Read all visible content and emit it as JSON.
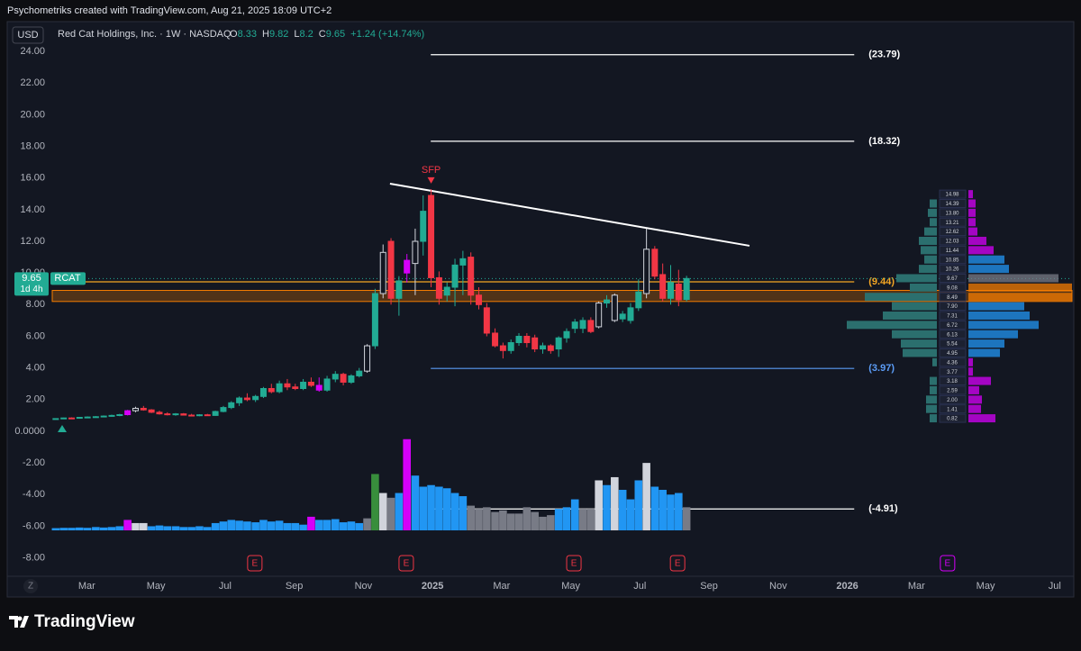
{
  "header": {
    "credit": "Psychometriks created with TradingView.com, Aug 21, 2025 18:09 UTC+2"
  },
  "chart_data": {
    "type": "candlestick",
    "currency": "USD",
    "title": "Red Cat Holdings, Inc. · 1W · NASDAQ",
    "ohlc_letters": [
      "O",
      "H",
      "L",
      "C"
    ],
    "change_label": "+1.24 (+14.74%)",
    "symbol": "RCAT",
    "countdown": "1d 4h",
    "x": [
      1.1,
      1.33,
      1.56,
      1.79,
      2.02,
      2.26,
      2.49,
      2.72,
      2.95,
      3.18,
      3.41,
      3.64,
      3.87,
      4.1,
      4.33,
      4.57,
      4.8,
      5.03,
      5.26,
      5.49,
      5.72,
      5.95,
      6.18,
      6.41,
      6.64,
      6.88,
      7.11,
      7.34,
      7.57,
      7.8,
      8.03,
      8.26,
      8.49,
      8.72,
      8.95,
      9.19,
      9.42,
      9.65,
      9.88,
      10.11,
      10.34,
      10.57,
      10.8,
      11.03,
      11.26,
      11.5,
      11.73,
      11.96,
      12.19,
      12.42,
      12.65,
      12.88,
      13.11,
      13.34,
      13.57,
      13.81,
      14.04,
      14.27,
      14.5,
      14.73,
      14.96,
      15.19,
      15.42,
      15.65,
      15.88,
      16.12,
      16.35,
      16.58,
      16.81,
      17.04,
      17.27,
      17.5,
      17.73,
      17.96,
      18.19,
      18.43,
      18.66,
      18.89,
      19.12,
      19.35
    ],
    "open": [
      0.78,
      0.8,
      0.84,
      0.82,
      0.88,
      0.9,
      0.92,
      0.96,
      1.0,
      1.05,
      1.3,
      1.45,
      1.35,
      1.2,
      1.1,
      1.05,
      1.1,
      1.02,
      1.0,
      1.04,
      1.0,
      1.25,
      1.5,
      1.8,
      2.1,
      2.0,
      2.2,
      2.7,
      2.5,
      3.0,
      2.8,
      2.7,
      3.1,
      2.9,
      2.6,
      3.3,
      3.6,
      3.1,
      3.5,
      3.8,
      5.4,
      8.7,
      12.0,
      8.4,
      10.0,
      10.6,
      12.0,
      14.9,
      9.7,
      8.6,
      9.1,
      10.5,
      11.0,
      8.6,
      7.8,
      6.2,
      5.4,
      5.1,
      5.6,
      6.0,
      5.9,
      5.2,
      5.4,
      5.2,
      5.9,
      6.5,
      6.5,
      7.0,
      6.6,
      8.1,
      8.6,
      7.1,
      7.0,
      7.8,
      8.7,
      11.5,
      9.9,
      8.4,
      9.3,
      8.33
    ],
    "high": [
      0.82,
      0.86,
      0.88,
      0.9,
      0.94,
      0.96,
      1.0,
      1.05,
      1.1,
      1.35,
      1.55,
      1.6,
      1.4,
      1.3,
      1.2,
      1.15,
      1.15,
      1.1,
      1.08,
      1.1,
      1.3,
      1.6,
      1.9,
      2.2,
      2.4,
      2.3,
      2.8,
      3.0,
      3.2,
      3.3,
      3.0,
      3.3,
      3.4,
      3.4,
      3.5,
      3.8,
      3.7,
      3.6,
      4.0,
      5.5,
      9.0,
      11.8,
      12.2,
      9.8,
      11.2,
      12.8,
      14.9,
      15.3,
      10.1,
      9.4,
      10.9,
      11.4,
      11.3,
      9.1,
      8.1,
      6.5,
      5.6,
      5.8,
      6.2,
      6.2,
      6.1,
      5.6,
      5.5,
      6.0,
      6.5,
      7.1,
      7.2,
      7.2,
      8.2,
      8.6,
      8.7,
      7.6,
      8.1,
      9.6,
      12.8,
      11.7,
      10.6,
      10.5,
      10.2,
      9.82
    ],
    "low": [
      0.76,
      0.78,
      0.8,
      0.8,
      0.85,
      0.86,
      0.88,
      0.92,
      0.95,
      1.0,
      1.2,
      1.3,
      1.15,
      1.05,
      1.0,
      0.98,
      1.0,
      0.95,
      0.95,
      0.98,
      0.98,
      1.2,
      1.4,
      1.6,
      1.9,
      1.85,
      2.1,
      2.4,
      2.4,
      2.6,
      2.6,
      2.6,
      2.8,
      2.5,
      2.5,
      3.1,
      2.9,
      3.0,
      3.4,
      3.7,
      5.2,
      8.4,
      8.0,
      7.3,
      9.4,
      8.6,
      11.1,
      9.1,
      8.0,
      8.2,
      7.9,
      8.6,
      8.0,
      7.7,
      6.0,
      5.3,
      4.6,
      4.9,
      5.4,
      5.3,
      5.0,
      4.9,
      4.9,
      4.7,
      5.6,
      6.2,
      6.2,
      6.2,
      6.5,
      7.8,
      6.9,
      6.9,
      6.8,
      7.6,
      8.4,
      9.6,
      8.2,
      8.0,
      7.9,
      8.2
    ],
    "close": [
      0.8,
      0.84,
      0.82,
      0.88,
      0.9,
      0.92,
      0.96,
      1.0,
      1.05,
      1.3,
      1.45,
      1.35,
      1.2,
      1.1,
      1.05,
      1.1,
      1.02,
      1.0,
      1.04,
      1.0,
      1.25,
      1.5,
      1.8,
      2.1,
      2.0,
      2.2,
      2.7,
      2.5,
      3.0,
      2.8,
      2.7,
      3.1,
      2.9,
      2.6,
      3.3,
      3.6,
      3.1,
      3.5,
      3.8,
      5.4,
      8.7,
      11.3,
      8.4,
      9.5,
      10.8,
      12.0,
      13.9,
      9.7,
      8.4,
      9.1,
      10.5,
      10.9,
      8.6,
      8.0,
      6.2,
      5.4,
      5.1,
      5.6,
      6.0,
      5.6,
      5.2,
      5.4,
      5.1,
      5.9,
      6.3,
      6.9,
      7.0,
      6.3,
      8.1,
      8.3,
      7.0,
      7.4,
      7.8,
      8.8,
      11.5,
      9.8,
      8.4,
      9.4,
      8.3,
      9.65
    ],
    "styles": "ggrggggggpwrrrrgrrgrggggrggrgrrgrpggrggwgwrgpwgrrgggrrrrrggrrgrggggrwgwgggwrrgrg",
    "palette": {
      "g": "#22ab94",
      "r": "#f23645",
      "w": "#d1d4dc",
      "p": "#d500f9",
      "b": "#2196f3",
      "a": "#787b86",
      "m": "#d500f9",
      "G": "#388e3c",
      "o": "#f57c00"
    },
    "volume": {
      "base": -6.26,
      "values": [
        -6.12,
        -6.1,
        -6.1,
        -6.08,
        -6.1,
        -6.05,
        -6.08,
        -6.05,
        -6.0,
        -5.6,
        -5.8,
        -5.8,
        -6.0,
        -5.95,
        -6.0,
        -6.0,
        -6.05,
        -6.05,
        -6.0,
        -6.05,
        -5.8,
        -5.7,
        -5.6,
        -5.65,
        -5.7,
        -5.75,
        -5.6,
        -5.7,
        -5.65,
        -5.8,
        -5.8,
        -5.9,
        -5.4,
        -5.6,
        -5.6,
        -5.55,
        -5.75,
        -5.7,
        -5.8,
        -5.5,
        -2.7,
        -3.9,
        -4.2,
        -3.9,
        -0.5,
        -2.8,
        -3.5,
        -3.4,
        -3.5,
        -3.6,
        -3.9,
        -4.1,
        -4.7,
        -4.9,
        -4.8,
        -5.1,
        -5.0,
        -5.2,
        -5.2,
        -4.8,
        -5.1,
        -5.4,
        -5.3,
        -4.9,
        -4.8,
        -4.3,
        -4.9,
        -4.9,
        -3.1,
        -3.4,
        -2.9,
        -3.7,
        -4.3,
        -3.1,
        -2.0,
        -3.5,
        -3.7,
        -4.0,
        -3.9,
        -4.8
      ],
      "styles": "bbbbbbbbbmwwbbbbbbbbbbbbbbbbbbbbmbbbbbbaGwabmbbbbbbbaaaaaaaaaaabbbaawbwbbbwbbbba"
    },
    "xlim": [
      1.0,
      30.5
    ],
    "xticks": [
      {
        "value": 2,
        "label": "Mar"
      },
      {
        "value": 4,
        "label": "May"
      },
      {
        "value": 6,
        "label": "Jul"
      },
      {
        "value": 8,
        "label": "Sep"
      },
      {
        "value": 10,
        "label": "Nov"
      },
      {
        "value": 12,
        "label": "2025"
      },
      {
        "value": 14,
        "label": "Mar"
      },
      {
        "value": 16,
        "label": "May"
      },
      {
        "value": 18,
        "label": "Jul"
      },
      {
        "value": 20,
        "label": "Sep"
      },
      {
        "value": 22,
        "label": "Nov"
      },
      {
        "value": 24,
        "label": "2026"
      },
      {
        "value": 26,
        "label": "Mar"
      },
      {
        "value": 28,
        "label": "May"
      },
      {
        "value": 30,
        "label": "Jul"
      }
    ],
    "ylim": [
      -9.16,
      25.88
    ],
    "yticks": [
      {
        "value": 24,
        "label": "24.00"
      },
      {
        "value": 22,
        "label": "22.00"
      },
      {
        "value": 20,
        "label": "20.00"
      },
      {
        "value": 18,
        "label": "18.00"
      },
      {
        "value": 16,
        "label": "16.00"
      },
      {
        "value": 14,
        "label": "14.00"
      },
      {
        "value": 12,
        "label": "12.00"
      },
      {
        "value": 10,
        "label": "10.00"
      },
      {
        "value": 8,
        "label": "8.00"
      },
      {
        "value": 6,
        "label": "6.00"
      },
      {
        "value": 4,
        "label": "4.00"
      },
      {
        "value": 2,
        "label": "2.00"
      },
      {
        "value": 0,
        "label": "0.0000"
      },
      {
        "value": -2,
        "label": "-2.00"
      },
      {
        "value": -4,
        "label": "-4.00"
      },
      {
        "value": -6,
        "label": "-6.00"
      },
      {
        "value": -8,
        "label": "-8.00"
      }
    ],
    "levels": [
      {
        "value": 23.79,
        "label": "(23.79)",
        "color": "#ffffff",
        "x": [
          11.95,
          24.2
        ]
      },
      {
        "value": 18.32,
        "label": "(18.32)",
        "color": "#ffffff",
        "x": [
          11.95,
          24.2
        ]
      },
      {
        "value": 9.44,
        "label": "(9.44)",
        "color": "#f5a623",
        "x": [
          1.0,
          24.2
        ]
      },
      {
        "value": 3.97,
        "label": "(3.97)",
        "color": "#5b9cf6",
        "x": [
          11.95,
          24.2
        ]
      },
      {
        "value": -4.91,
        "label": "(-4.91)",
        "color": "#ffffff",
        "x": [
          11.95,
          24.2
        ]
      }
    ],
    "zone": [
      8.2,
      8.9
    ],
    "trendline": {
      "x": [
        10.77,
        21.17
      ],
      "y": [
        15.64,
        11.72
      ]
    },
    "annotation": {
      "text": "SFP",
      "x": 11.96,
      "y": 16.5
    },
    "earnings": [
      {
        "x": 6.86,
        "label": "E",
        "color": "#f23645"
      },
      {
        "x": 11.24,
        "label": "E",
        "color": "#f23645"
      },
      {
        "x": 16.09,
        "label": "E",
        "color": "#f23645"
      },
      {
        "x": 19.09,
        "label": "E",
        "color": "#f23645"
      },
      {
        "x": 26.9,
        "label": "E",
        "color": "#d500f9"
      }
    ],
    "profile": {
      "levels": [
        {
          "value": 14.98,
          "label": "14.98"
        },
        {
          "value": 14.39,
          "label": "14.39"
        },
        {
          "value": 13.8,
          "label": "13.80"
        },
        {
          "value": 13.21,
          "label": "13.21"
        },
        {
          "value": 12.62,
          "label": "12.62"
        },
        {
          "value": 12.03,
          "label": "12.03"
        },
        {
          "value": 11.44,
          "label": "11.44"
        },
        {
          "value": 10.85,
          "label": "10.85"
        },
        {
          "value": 10.26,
          "label": "10.26"
        },
        {
          "value": 9.67,
          "label": "9.67"
        },
        {
          "value": 9.08,
          "label": "9.08"
        },
        {
          "value": 8.49,
          "label": "8.49"
        },
        {
          "value": 7.9,
          "label": "7.90"
        },
        {
          "value": 7.31,
          "label": "7.31"
        },
        {
          "value": 6.72,
          "label": "6.72"
        },
        {
          "value": 6.13,
          "label": "6.13"
        },
        {
          "value": 5.54,
          "label": "5.54"
        },
        {
          "value": 4.95,
          "label": "4.95"
        },
        {
          "value": 4.36,
          "label": "4.36"
        },
        {
          "value": 3.77,
          "label": "3.77"
        },
        {
          "value": 3.18,
          "label": "3.18"
        },
        {
          "value": 2.59,
          "label": "2.59"
        },
        {
          "value": 2.0,
          "label": "2.00"
        },
        {
          "value": 1.41,
          "label": "1.41"
        },
        {
          "value": 0.82,
          "label": "0.82"
        }
      ],
      "left": [
        0,
        8,
        10,
        8,
        14,
        20,
        18,
        14,
        20,
        45,
        30,
        80,
        50,
        60,
        100,
        50,
        40,
        38,
        5,
        0,
        8,
        8,
        12,
        12,
        8
      ],
      "right": [
        5,
        8,
        8,
        8,
        10,
        20,
        28,
        40,
        45,
        100,
        115,
        115,
        62,
        68,
        78,
        55,
        40,
        35,
        5,
        5,
        25,
        12,
        15,
        14,
        30
      ],
      "right_styles": "pppppppbbaoobbbbbbppppppp"
    }
  },
  "footer": {
    "logo": "TradingView",
    "scale_button": "Z"
  }
}
